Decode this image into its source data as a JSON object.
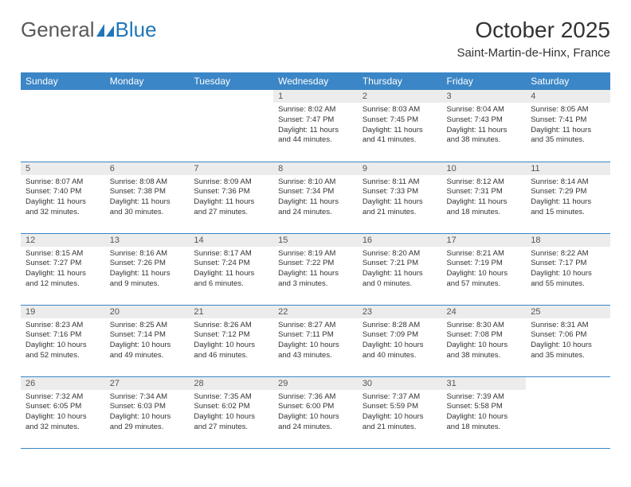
{
  "brand": {
    "part1": "General",
    "part2": "Blue"
  },
  "title": "October 2025",
  "location": "Saint-Martin-de-Hinx, France",
  "colors": {
    "header_bg": "#3b86c6",
    "header_text": "#ffffff",
    "daynum_bg": "#ececec",
    "border": "#3b86c6",
    "brand_blue": "#2176b8",
    "page_bg": "#ffffff"
  },
  "typography": {
    "month_title_size": 28,
    "location_size": 15,
    "th_size": 12,
    "daynum_size": 11,
    "daydata_size": 9.5,
    "logo_size": 26
  },
  "weekdays": [
    "Sunday",
    "Monday",
    "Tuesday",
    "Wednesday",
    "Thursday",
    "Friday",
    "Saturday"
  ],
  "weeks": [
    [
      null,
      null,
      null,
      {
        "n": "1",
        "sr": "Sunrise: 8:02 AM",
        "ss": "Sunset: 7:47 PM",
        "dl1": "Daylight: 11 hours",
        "dl2": "and 44 minutes."
      },
      {
        "n": "2",
        "sr": "Sunrise: 8:03 AM",
        "ss": "Sunset: 7:45 PM",
        "dl1": "Daylight: 11 hours",
        "dl2": "and 41 minutes."
      },
      {
        "n": "3",
        "sr": "Sunrise: 8:04 AM",
        "ss": "Sunset: 7:43 PM",
        "dl1": "Daylight: 11 hours",
        "dl2": "and 38 minutes."
      },
      {
        "n": "4",
        "sr": "Sunrise: 8:05 AM",
        "ss": "Sunset: 7:41 PM",
        "dl1": "Daylight: 11 hours",
        "dl2": "and 35 minutes."
      }
    ],
    [
      {
        "n": "5",
        "sr": "Sunrise: 8:07 AM",
        "ss": "Sunset: 7:40 PM",
        "dl1": "Daylight: 11 hours",
        "dl2": "and 32 minutes."
      },
      {
        "n": "6",
        "sr": "Sunrise: 8:08 AM",
        "ss": "Sunset: 7:38 PM",
        "dl1": "Daylight: 11 hours",
        "dl2": "and 30 minutes."
      },
      {
        "n": "7",
        "sr": "Sunrise: 8:09 AM",
        "ss": "Sunset: 7:36 PM",
        "dl1": "Daylight: 11 hours",
        "dl2": "and 27 minutes."
      },
      {
        "n": "8",
        "sr": "Sunrise: 8:10 AM",
        "ss": "Sunset: 7:34 PM",
        "dl1": "Daylight: 11 hours",
        "dl2": "and 24 minutes."
      },
      {
        "n": "9",
        "sr": "Sunrise: 8:11 AM",
        "ss": "Sunset: 7:33 PM",
        "dl1": "Daylight: 11 hours",
        "dl2": "and 21 minutes."
      },
      {
        "n": "10",
        "sr": "Sunrise: 8:12 AM",
        "ss": "Sunset: 7:31 PM",
        "dl1": "Daylight: 11 hours",
        "dl2": "and 18 minutes."
      },
      {
        "n": "11",
        "sr": "Sunrise: 8:14 AM",
        "ss": "Sunset: 7:29 PM",
        "dl1": "Daylight: 11 hours",
        "dl2": "and 15 minutes."
      }
    ],
    [
      {
        "n": "12",
        "sr": "Sunrise: 8:15 AM",
        "ss": "Sunset: 7:27 PM",
        "dl1": "Daylight: 11 hours",
        "dl2": "and 12 minutes."
      },
      {
        "n": "13",
        "sr": "Sunrise: 8:16 AM",
        "ss": "Sunset: 7:26 PM",
        "dl1": "Daylight: 11 hours",
        "dl2": "and 9 minutes."
      },
      {
        "n": "14",
        "sr": "Sunrise: 8:17 AM",
        "ss": "Sunset: 7:24 PM",
        "dl1": "Daylight: 11 hours",
        "dl2": "and 6 minutes."
      },
      {
        "n": "15",
        "sr": "Sunrise: 8:19 AM",
        "ss": "Sunset: 7:22 PM",
        "dl1": "Daylight: 11 hours",
        "dl2": "and 3 minutes."
      },
      {
        "n": "16",
        "sr": "Sunrise: 8:20 AM",
        "ss": "Sunset: 7:21 PM",
        "dl1": "Daylight: 11 hours",
        "dl2": "and 0 minutes."
      },
      {
        "n": "17",
        "sr": "Sunrise: 8:21 AM",
        "ss": "Sunset: 7:19 PM",
        "dl1": "Daylight: 10 hours",
        "dl2": "and 57 minutes."
      },
      {
        "n": "18",
        "sr": "Sunrise: 8:22 AM",
        "ss": "Sunset: 7:17 PM",
        "dl1": "Daylight: 10 hours",
        "dl2": "and 55 minutes."
      }
    ],
    [
      {
        "n": "19",
        "sr": "Sunrise: 8:23 AM",
        "ss": "Sunset: 7:16 PM",
        "dl1": "Daylight: 10 hours",
        "dl2": "and 52 minutes."
      },
      {
        "n": "20",
        "sr": "Sunrise: 8:25 AM",
        "ss": "Sunset: 7:14 PM",
        "dl1": "Daylight: 10 hours",
        "dl2": "and 49 minutes."
      },
      {
        "n": "21",
        "sr": "Sunrise: 8:26 AM",
        "ss": "Sunset: 7:12 PM",
        "dl1": "Daylight: 10 hours",
        "dl2": "and 46 minutes."
      },
      {
        "n": "22",
        "sr": "Sunrise: 8:27 AM",
        "ss": "Sunset: 7:11 PM",
        "dl1": "Daylight: 10 hours",
        "dl2": "and 43 minutes."
      },
      {
        "n": "23",
        "sr": "Sunrise: 8:28 AM",
        "ss": "Sunset: 7:09 PM",
        "dl1": "Daylight: 10 hours",
        "dl2": "and 40 minutes."
      },
      {
        "n": "24",
        "sr": "Sunrise: 8:30 AM",
        "ss": "Sunset: 7:08 PM",
        "dl1": "Daylight: 10 hours",
        "dl2": "and 38 minutes."
      },
      {
        "n": "25",
        "sr": "Sunrise: 8:31 AM",
        "ss": "Sunset: 7:06 PM",
        "dl1": "Daylight: 10 hours",
        "dl2": "and 35 minutes."
      }
    ],
    [
      {
        "n": "26",
        "sr": "Sunrise: 7:32 AM",
        "ss": "Sunset: 6:05 PM",
        "dl1": "Daylight: 10 hours",
        "dl2": "and 32 minutes."
      },
      {
        "n": "27",
        "sr": "Sunrise: 7:34 AM",
        "ss": "Sunset: 6:03 PM",
        "dl1": "Daylight: 10 hours",
        "dl2": "and 29 minutes."
      },
      {
        "n": "28",
        "sr": "Sunrise: 7:35 AM",
        "ss": "Sunset: 6:02 PM",
        "dl1": "Daylight: 10 hours",
        "dl2": "and 27 minutes."
      },
      {
        "n": "29",
        "sr": "Sunrise: 7:36 AM",
        "ss": "Sunset: 6:00 PM",
        "dl1": "Daylight: 10 hours",
        "dl2": "and 24 minutes."
      },
      {
        "n": "30",
        "sr": "Sunrise: 7:37 AM",
        "ss": "Sunset: 5:59 PM",
        "dl1": "Daylight: 10 hours",
        "dl2": "and 21 minutes."
      },
      {
        "n": "31",
        "sr": "Sunrise: 7:39 AM",
        "ss": "Sunset: 5:58 PM",
        "dl1": "Daylight: 10 hours",
        "dl2": "and 18 minutes."
      },
      null
    ]
  ]
}
